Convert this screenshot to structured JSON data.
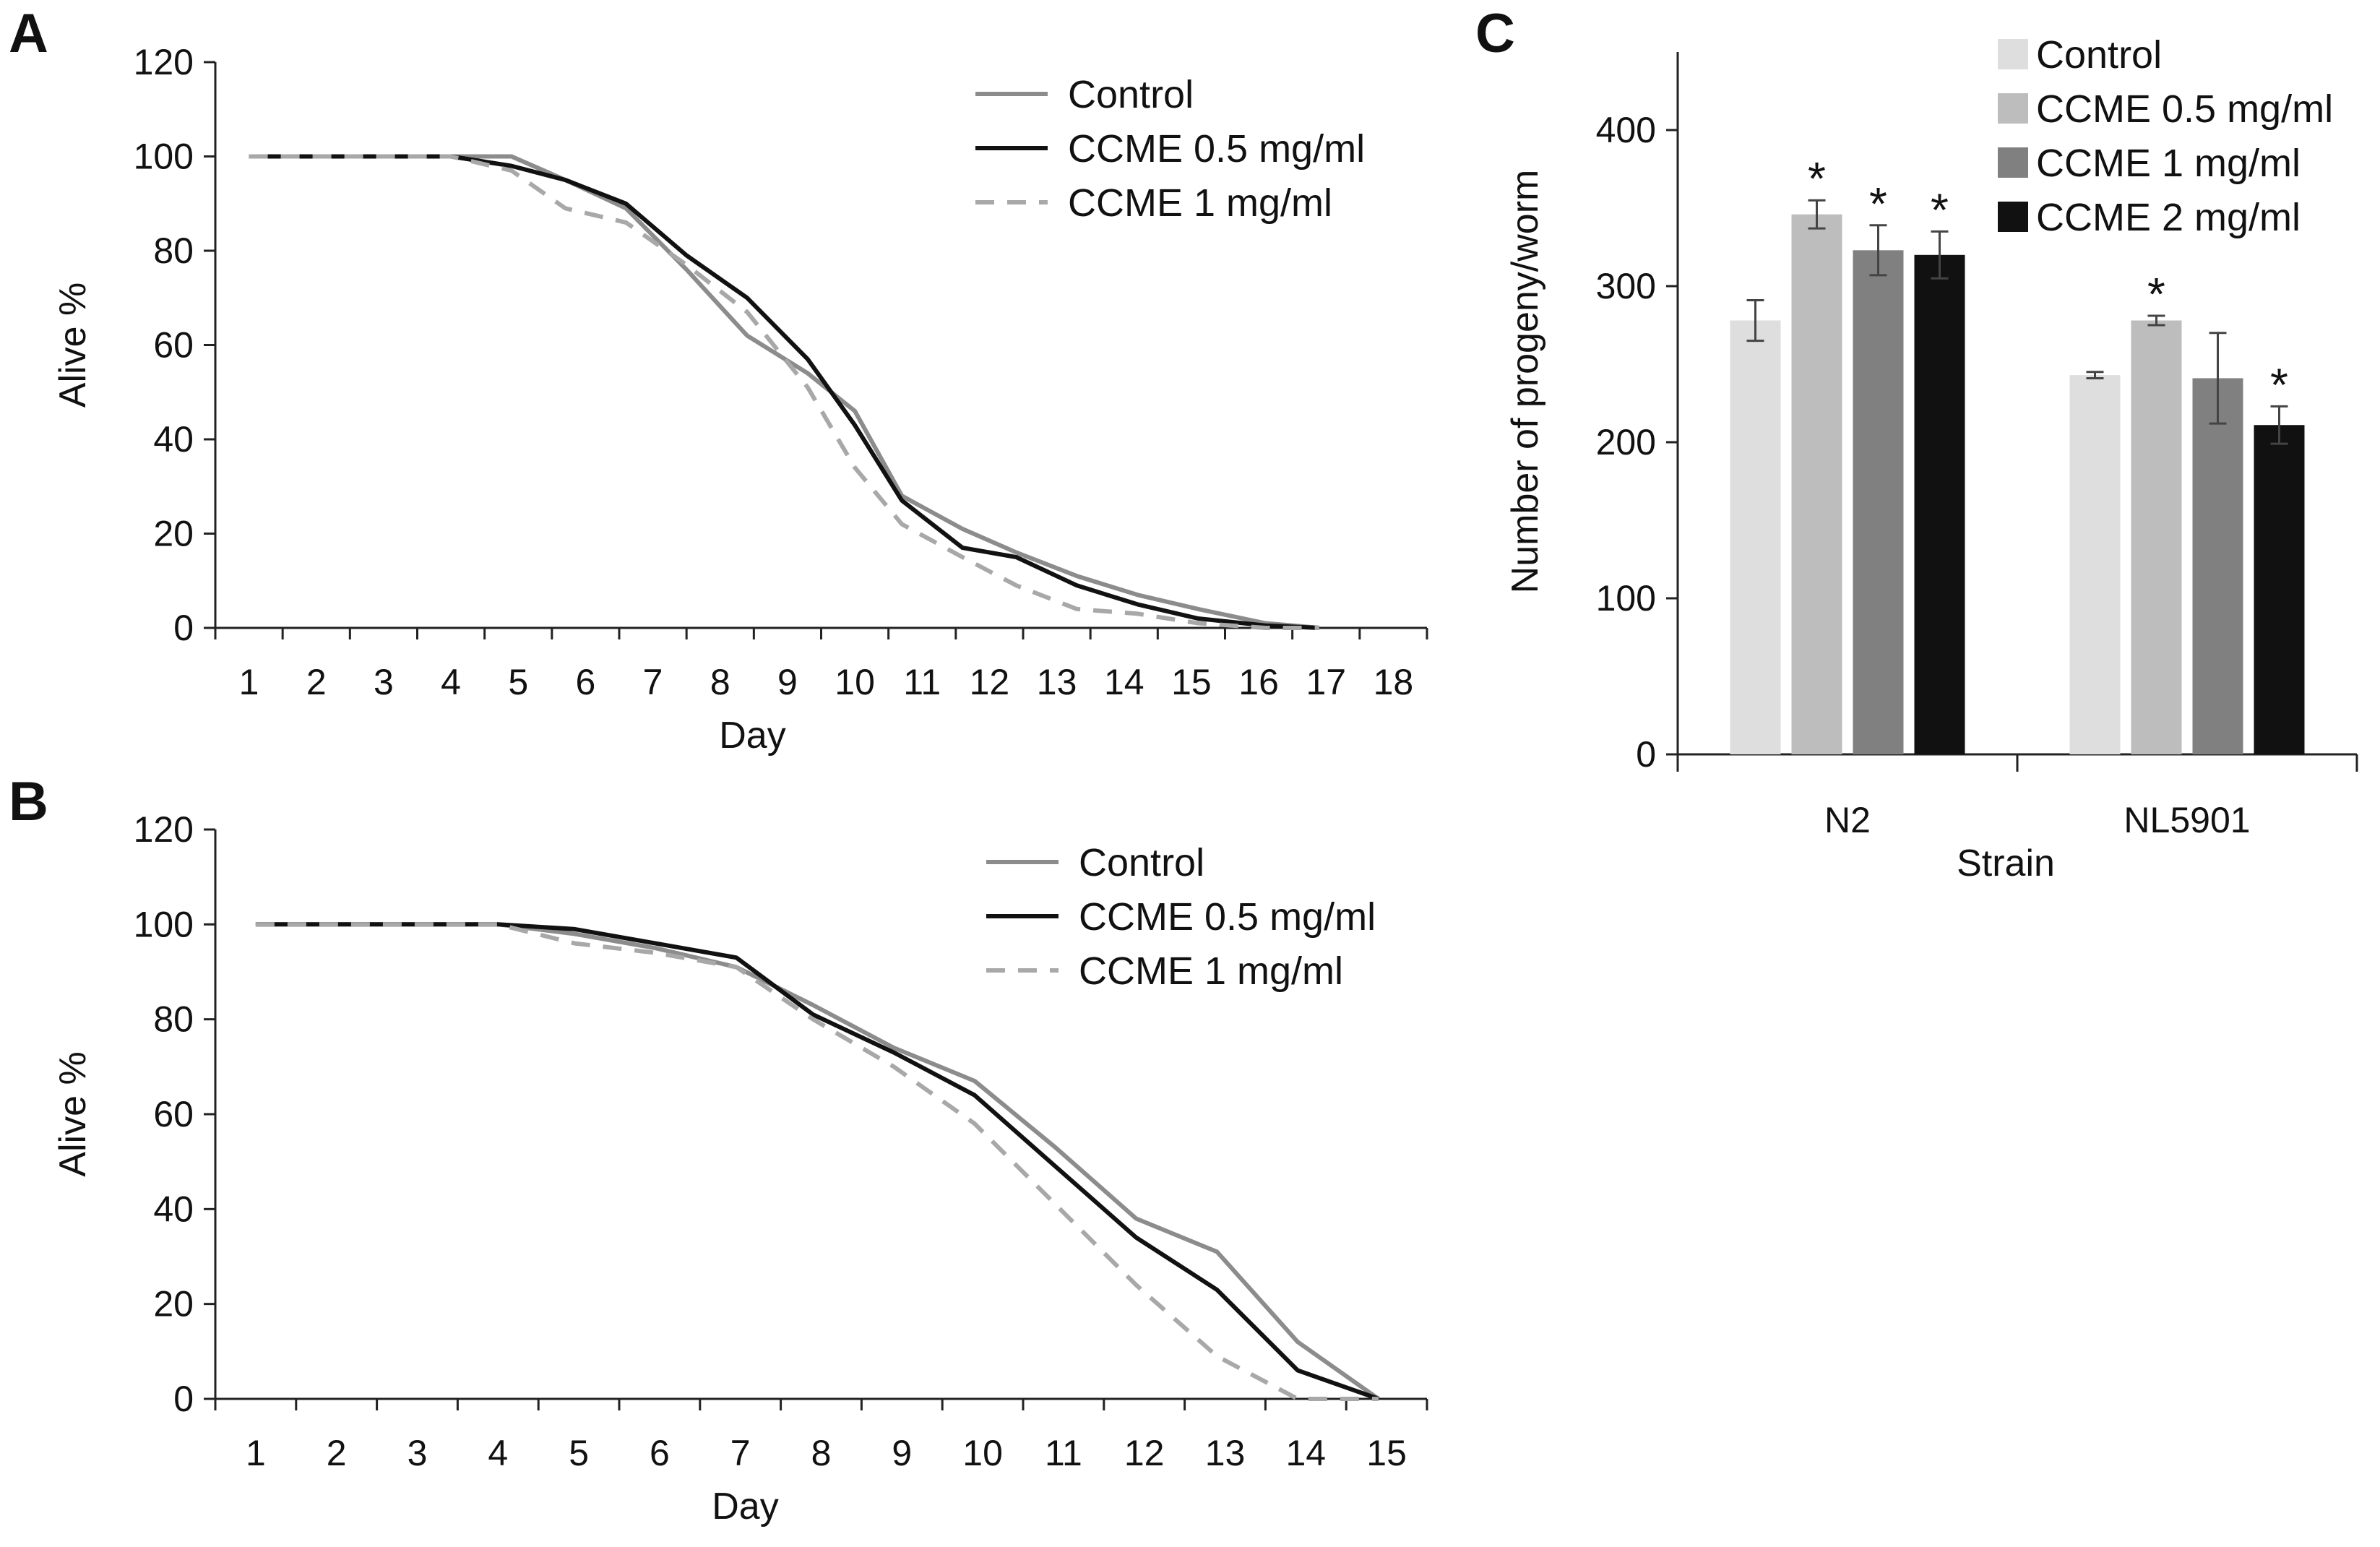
{
  "chart_data": [
    {
      "panel": "A",
      "type": "line",
      "xlabel": "Day",
      "ylabel": "Alive %",
      "ylim": [
        0,
        120
      ],
      "yticks": [
        0,
        20,
        40,
        60,
        80,
        100,
        120
      ],
      "categories": [
        "1",
        "2",
        "3",
        "4",
        "5",
        "6",
        "7",
        "8",
        "9",
        "10",
        "11",
        "12",
        "13",
        "14",
        "15",
        "16",
        "17",
        "18"
      ],
      "legend_position": "top-right",
      "series": [
        {
          "name": "Control",
          "color": "#8c8c8c",
          "dash": "solid",
          "points": [
            [
              1,
              100
            ],
            [
              2,
              100
            ],
            [
              3,
              100
            ],
            [
              4,
              100
            ],
            [
              4.9,
              100
            ],
            [
              5.7,
              95
            ],
            [
              6.6,
              89
            ],
            [
              7.5,
              76
            ],
            [
              8.4,
              62
            ],
            [
              9.3,
              54
            ],
            [
              10,
              46
            ],
            [
              10.7,
              28
            ],
            [
              11.6,
              21
            ],
            [
              12.4,
              16
            ],
            [
              13.3,
              11
            ],
            [
              14.2,
              7
            ],
            [
              15.1,
              4
            ],
            [
              16.1,
              1
            ],
            [
              16.9,
              0
            ]
          ]
        },
        {
          "name": "CCME 0.5 mg/ml",
          "color": "#111111",
          "dash": "solid",
          "points": [
            [
              1,
              100
            ],
            [
              2,
              100
            ],
            [
              3,
              100
            ],
            [
              4,
              100
            ],
            [
              4.9,
              98
            ],
            [
              5.7,
              95
            ],
            [
              6.6,
              90
            ],
            [
              7.5,
              79
            ],
            [
              8.4,
              70
            ],
            [
              9.3,
              57
            ],
            [
              10,
              43
            ],
            [
              10.7,
              27
            ],
            [
              11.6,
              17
            ],
            [
              12.4,
              15
            ],
            [
              13.3,
              9
            ],
            [
              14.2,
              5
            ],
            [
              15.1,
              2
            ],
            [
              16.1,
              0.5
            ],
            [
              16.9,
              0
            ]
          ]
        },
        {
          "name": "CCME 1 mg/ml",
          "color": "#a8a8a8",
          "dash": "dashed",
          "points": [
            [
              1,
              100
            ],
            [
              2,
              100
            ],
            [
              3,
              100
            ],
            [
              4,
              100
            ],
            [
              4.9,
              97
            ],
            [
              5.7,
              89
            ],
            [
              6.6,
              86
            ],
            [
              7.5,
              77
            ],
            [
              8.4,
              67
            ],
            [
              9.3,
              51
            ],
            [
              10,
              34
            ],
            [
              10.7,
              22
            ],
            [
              11.6,
              15
            ],
            [
              12.4,
              9
            ],
            [
              13.3,
              4
            ],
            [
              14.2,
              3
            ],
            [
              15.1,
              1
            ],
            [
              16.1,
              0
            ],
            [
              16.9,
              0
            ]
          ]
        }
      ]
    },
    {
      "panel": "B",
      "type": "line",
      "xlabel": "Day",
      "ylabel": "Alive %",
      "ylim": [
        0,
        120
      ],
      "yticks": [
        0,
        20,
        40,
        60,
        80,
        100,
        120
      ],
      "categories": [
        "1",
        "2",
        "3",
        "4",
        "5",
        "6",
        "7",
        "8",
        "9",
        "10",
        "11",
        "12",
        "13",
        "14",
        "15"
      ],
      "legend_position": "top-right",
      "series": [
        {
          "name": "Control",
          "color": "#8c8c8c",
          "dash": "solid",
          "points": [
            [
              1,
              100
            ],
            [
              2,
              100
            ],
            [
              3,
              100
            ],
            [
              4,
              100
            ],
            [
              4.95,
              98
            ],
            [
              5.95,
              95
            ],
            [
              6.95,
              91
            ],
            [
              7.9,
              83
            ],
            [
              8.9,
              74
            ],
            [
              9.9,
              67
            ],
            [
              10.9,
              53
            ],
            [
              11.9,
              38
            ],
            [
              12.9,
              31
            ],
            [
              13.9,
              12
            ],
            [
              14.9,
              0
            ]
          ]
        },
        {
          "name": "CCME 0.5 mg/ml",
          "color": "#111111",
          "dash": "solid",
          "points": [
            [
              1,
              100
            ],
            [
              2,
              100
            ],
            [
              3,
              100
            ],
            [
              4,
              100
            ],
            [
              4.95,
              99
            ],
            [
              5.95,
              96
            ],
            [
              6.95,
              93
            ],
            [
              7.9,
              81
            ],
            [
              8.9,
              73
            ],
            [
              9.9,
              64
            ],
            [
              10.9,
              49
            ],
            [
              11.9,
              34
            ],
            [
              12.9,
              23
            ],
            [
              13.9,
              6
            ],
            [
              14.9,
              0
            ]
          ]
        },
        {
          "name": "CCME 1 mg/ml",
          "color": "#a8a8a8",
          "dash": "dashed",
          "points": [
            [
              1,
              100
            ],
            [
              2,
              100
            ],
            [
              3,
              100
            ],
            [
              4,
              100
            ],
            [
              4.95,
              96
            ],
            [
              5.95,
              94
            ],
            [
              6.95,
              91
            ],
            [
              7.9,
              80
            ],
            [
              8.9,
              70
            ],
            [
              9.9,
              58
            ],
            [
              10.9,
              41
            ],
            [
              11.9,
              24
            ],
            [
              12.9,
              9
            ],
            [
              13.9,
              0
            ],
            [
              14.9,
              0
            ]
          ]
        }
      ]
    },
    {
      "panel": "C",
      "type": "bar",
      "xlabel": "Strain",
      "ylabel": "Number of progeny/worm",
      "ylim": [
        0,
        450
      ],
      "yticks": [
        0,
        100,
        200,
        300,
        400
      ],
      "categories": [
        "N2",
        "NL5901"
      ],
      "legend_position": "top-right",
      "significance_marker": "*",
      "series": [
        {
          "name": "Control",
          "color": "#dedede",
          "values": [
            278,
            243
          ],
          "errors": [
            13,
            2
          ],
          "significant": [
            false,
            false
          ]
        },
        {
          "name": "CCME 0.5 mg/ml",
          "color": "#bdbdbd",
          "values": [
            346,
            278
          ],
          "errors": [
            9,
            3
          ],
          "significant": [
            true,
            true
          ]
        },
        {
          "name": "CCME 1 mg/ml",
          "color": "#808080",
          "values": [
            323,
            241
          ],
          "errors": [
            16,
            29
          ],
          "significant": [
            true,
            false
          ]
        },
        {
          "name": "CCME 2 mg/ml",
          "color": "#111111",
          "values": [
            320,
            211
          ],
          "errors": [
            15,
            12
          ],
          "significant": [
            true,
            true
          ]
        }
      ]
    }
  ]
}
